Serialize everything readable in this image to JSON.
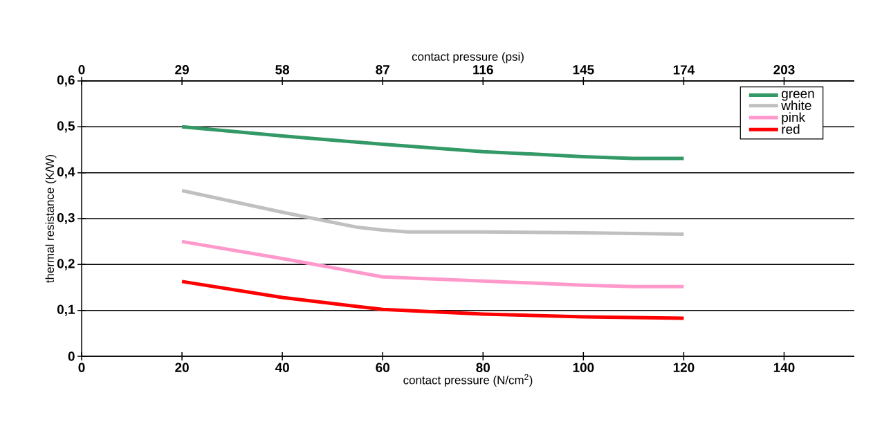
{
  "chart_data": {
    "type": "line",
    "xlabel": "contact pressure (N/cm$^{2}$)",
    "x2label": "contact pressure (psi)",
    "ylabel": "thermal resistance (K/W)",
    "xlim": [
      0,
      154
    ],
    "xticks": [
      0,
      20,
      40,
      60,
      80,
      100,
      120,
      140
    ],
    "x2lim": [
      0,
      223.3
    ],
    "x2ticks": [
      0,
      29,
      58,
      87,
      116,
      145,
      174,
      203
    ],
    "ylim": [
      0,
      0.6
    ],
    "yticks": [
      0,
      {
        "value": 0.1,
        "label": "0,1"
      },
      {
        "value": 0.2,
        "label": "0,2"
      },
      {
        "value": 0.3,
        "label": "0,3"
      },
      {
        "value": 0.4,
        "label": "0,4"
      },
      {
        "value": 0.5,
        "label": "0,5"
      },
      {
        "value": 0.6,
        "label": "0,6"
      }
    ],
    "grid": "y",
    "legend": "top right",
    "series": [
      {
        "name": "green",
        "color": "#339966",
        "x": [
          20,
          40,
          60,
          80,
          100,
          110,
          120
        ],
        "values": [
          0.5,
          0.48,
          0.462,
          0.446,
          0.435,
          0.431,
          0.431
        ]
      },
      {
        "name": "white",
        "color": "#c0c0c0",
        "x": [
          20,
          40,
          55,
          60,
          65,
          80,
          100,
          120
        ],
        "values": [
          0.361,
          0.314,
          0.281,
          0.275,
          0.271,
          0.271,
          0.269,
          0.266
        ]
      },
      {
        "name": "pink",
        "color": "#ff99cc",
        "x": [
          20,
          40,
          60,
          80,
          100,
          110,
          120
        ],
        "values": [
          0.25,
          0.213,
          0.173,
          0.164,
          0.155,
          0.152,
          0.152
        ]
      },
      {
        "name": "red",
        "color": "#ff0000",
        "x": [
          20,
          40,
          60,
          80,
          100,
          120
        ],
        "values": [
          0.163,
          0.128,
          0.102,
          0.092,
          0.086,
          0.083
        ]
      }
    ]
  }
}
